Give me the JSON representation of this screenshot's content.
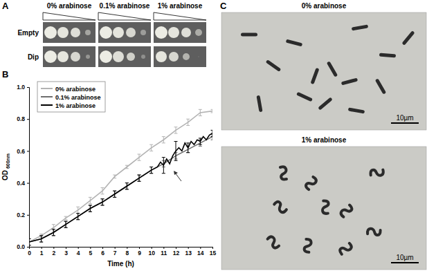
{
  "panel_labels": [
    "A",
    "B",
    "C"
  ],
  "panel_a": {
    "headers": [
      "0% arabinose",
      "0.1% arabinose",
      "1% arabinose"
    ],
    "rows": [
      "Empty",
      "Dip"
    ]
  },
  "panel_c": {
    "headers": [
      "0% arabinose",
      "1% arabinose"
    ],
    "scale_bar": "10µm"
  },
  "chart_data": {
    "type": "line",
    "x_label": "Time (h)",
    "y_label": "OD",
    "y_label_subscript": "600nm",
    "xlim": [
      0,
      15
    ],
    "xticks": [
      0,
      1,
      2,
      3,
      4,
      5,
      6,
      7,
      8,
      9,
      10,
      11,
      12,
      13,
      14,
      15
    ],
    "ylim": [
      0,
      1.0
    ],
    "yticks": [
      {
        "value": 0,
        "label": "0.0"
      },
      0.2,
      0.4,
      0.6,
      0.8,
      {
        "value": 1.0,
        "label": "1.0"
      }
    ],
    "legend": "top-left",
    "series": [
      {
        "name": "0% arabinose",
        "color": "#b3b3b3",
        "x": [
          0,
          1,
          2,
          3,
          4,
          5,
          6,
          7,
          8,
          9,
          10,
          11,
          12,
          13,
          14,
          15
        ],
        "values": [
          0.03,
          0.07,
          0.12,
          0.18,
          0.23,
          0.29,
          0.35,
          0.44,
          0.5,
          0.56,
          0.62,
          0.67,
          0.73,
          0.78,
          0.84,
          0.85
        ],
        "errors": [
          0.02,
          0.01,
          0.02,
          0.01,
          0.02,
          0.02,
          0.02,
          0.01,
          0.01,
          0.02,
          0.02,
          0.02,
          0.02,
          0.02,
          0.02,
          0.01
        ]
      },
      {
        "name": "0.1% arabinose",
        "color": "#6e6e6e",
        "x": [
          0,
          1,
          2,
          3,
          4,
          5,
          6,
          7,
          8,
          9,
          10,
          11,
          12,
          13,
          14,
          15
        ],
        "values": [
          0.03,
          0.05,
          0.09,
          0.14,
          0.19,
          0.24,
          0.28,
          0.33,
          0.38,
          0.43,
          0.48,
          0.52,
          0.57,
          0.61,
          0.65,
          0.69
        ],
        "errors": [
          0.02,
          0.02,
          0.02,
          0.02,
          0.02,
          0.02,
          0.02,
          0.02,
          0.02,
          0.02,
          0.02,
          0.02,
          0.02,
          0.02,
          0.02,
          0.02
        ]
      },
      {
        "name": "1% arabinose",
        "color": "#000000",
        "x": [
          0,
          1,
          2,
          3,
          4,
          5,
          6,
          7,
          8,
          9,
          10,
          10.5,
          10.75,
          11,
          11.25,
          11.5,
          11.75,
          12,
          12.25,
          12.5,
          12.75,
          13,
          13.25,
          13.5,
          13.75,
          14,
          14.25,
          14.5,
          14.75,
          15
        ],
        "values": [
          0.03,
          0.05,
          0.09,
          0.14,
          0.19,
          0.24,
          0.28,
          0.33,
          0.38,
          0.43,
          0.48,
          0.5,
          0.53,
          0.51,
          0.55,
          0.52,
          0.57,
          0.6,
          0.62,
          0.6,
          0.65,
          0.62,
          0.66,
          0.64,
          0.67,
          0.66,
          0.69,
          0.67,
          0.7,
          0.71
        ],
        "errors": [
          0.02,
          0.02,
          0.02,
          0.02,
          0.02,
          0.02,
          0.02,
          0.02,
          0.02,
          0.02,
          0.02,
          null,
          null,
          0.05,
          null,
          null,
          null,
          0.06,
          null,
          null,
          null,
          0.03,
          null,
          null,
          null,
          0.02,
          null,
          null,
          null,
          0.02
        ]
      }
    ]
  }
}
